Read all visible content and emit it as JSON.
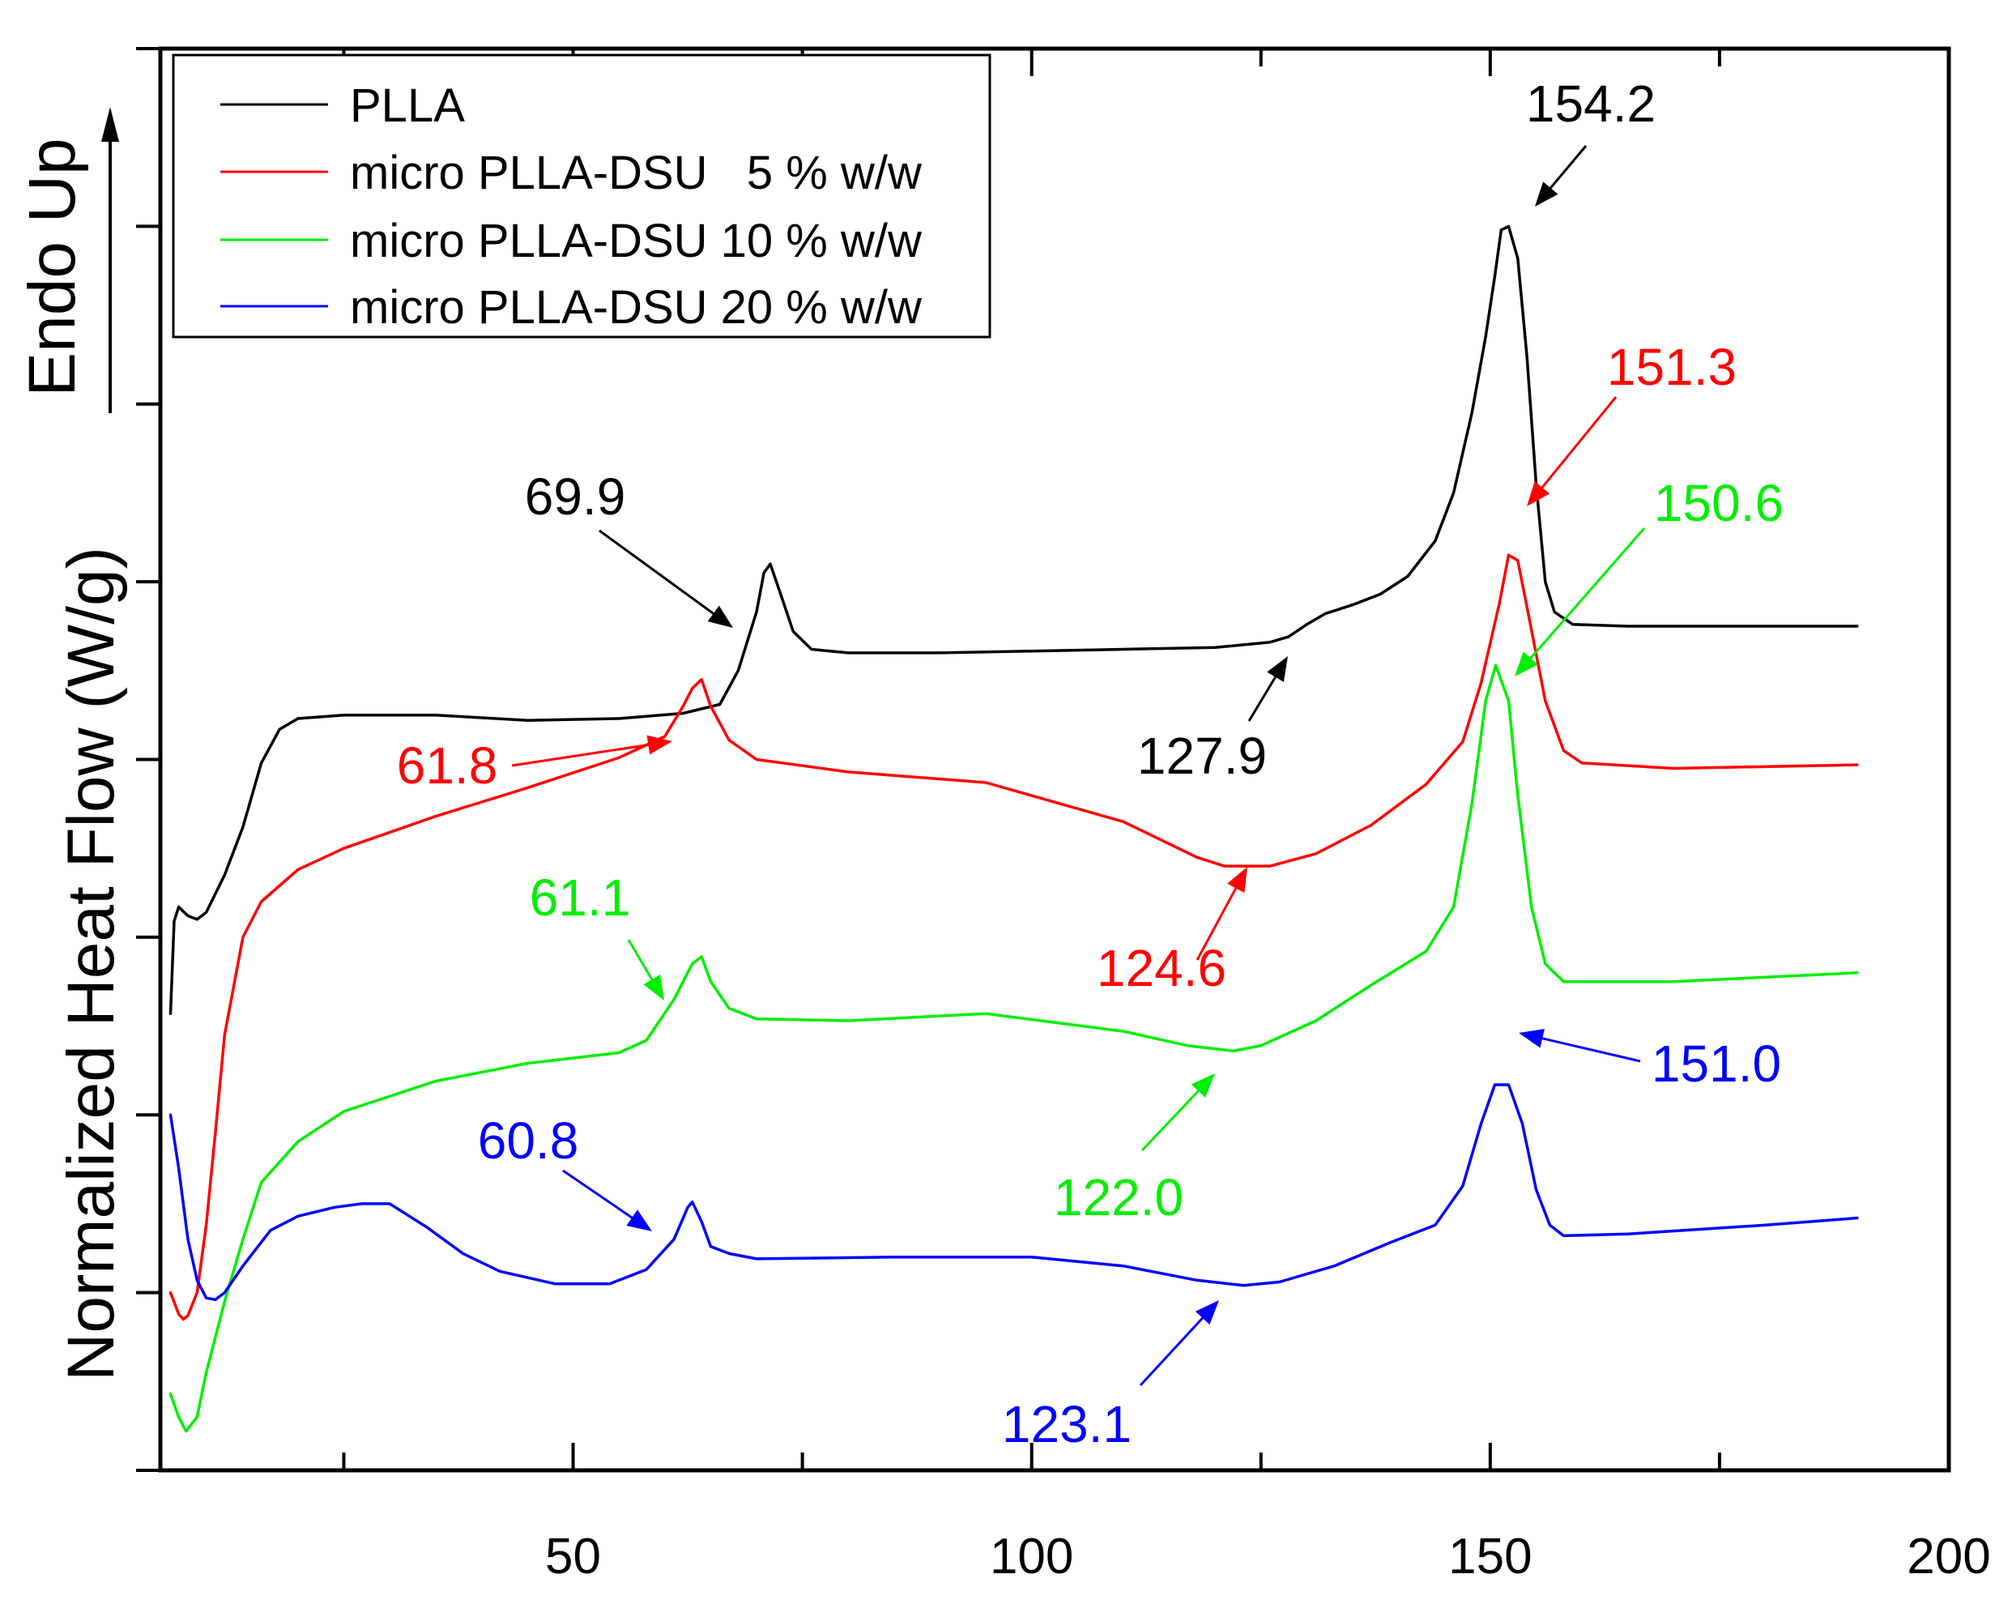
{
  "chart_data": {
    "type": "line",
    "title": "",
    "xlabel": "",
    "ylabel": "Normalized Heat Flow (W/g)",
    "y_direction_label": "Endo Up",
    "xlim": [
      5,
      200
    ],
    "ylim": [
      0,
      8
    ],
    "xticks": [
      50,
      100,
      150,
      200
    ],
    "yticks_labeled": false,
    "grid": false,
    "legend_position": "top-left",
    "colors": {
      "PLLA": "#000000",
      "micro PLLA-DSU   5 % w/w": "#ff0000",
      "micro PLLA-DSU 10 % w/w": "#00ee00",
      "micro PLLA-DSU 20 % w/w": "#0000ff"
    },
    "series": [
      {
        "name": "PLLA",
        "points": [
          [
            6.1,
            2.57
          ],
          [
            6.5,
            3.09
          ],
          [
            7,
            3.17
          ],
          [
            8,
            3.12
          ],
          [
            9,
            3.1
          ],
          [
            10,
            3.14
          ],
          [
            12,
            3.35
          ],
          [
            14,
            3.62
          ],
          [
            16,
            3.98
          ],
          [
            18,
            4.17
          ],
          [
            20,
            4.23
          ],
          [
            25,
            4.25
          ],
          [
            35,
            4.25
          ],
          [
            45,
            4.22
          ],
          [
            55,
            4.23
          ],
          [
            62,
            4.26
          ],
          [
            66,
            4.31
          ],
          [
            68,
            4.5
          ],
          [
            70,
            4.83
          ],
          [
            70.8,
            5.05
          ],
          [
            71.5,
            5.1
          ],
          [
            72.5,
            4.95
          ],
          [
            74,
            4.72
          ],
          [
            76,
            4.62
          ],
          [
            80,
            4.6
          ],
          [
            90,
            4.6
          ],
          [
            100,
            4.61
          ],
          [
            110,
            4.62
          ],
          [
            120,
            4.63
          ],
          [
            126,
            4.66
          ],
          [
            128,
            4.69
          ],
          [
            130,
            4.76
          ],
          [
            132,
            4.82
          ],
          [
            135,
            4.87
          ],
          [
            138,
            4.93
          ],
          [
            141,
            5.03
          ],
          [
            144,
            5.23
          ],
          [
            146,
            5.5
          ],
          [
            148,
            5.95
          ],
          [
            149.5,
            6.38
          ],
          [
            150.5,
            6.72
          ],
          [
            151.2,
            6.98
          ],
          [
            152,
            7.0
          ],
          [
            153,
            6.82
          ],
          [
            154,
            6.27
          ],
          [
            155,
            5.55
          ],
          [
            156,
            5.0
          ],
          [
            157,
            4.83
          ],
          [
            159,
            4.76
          ],
          [
            165,
            4.75
          ],
          [
            180,
            4.75
          ],
          [
            190,
            4.75
          ]
        ]
      },
      {
        "name": "micro PLLA-DSU   5 % w/w",
        "points": [
          [
            6.1,
            1.0
          ],
          [
            7,
            0.88
          ],
          [
            7.5,
            0.85
          ],
          [
            8,
            0.87
          ],
          [
            9,
            1.0
          ],
          [
            10,
            1.38
          ],
          [
            11,
            1.9
          ],
          [
            12,
            2.45
          ],
          [
            14,
            3.0
          ],
          [
            16,
            3.2
          ],
          [
            20,
            3.38
          ],
          [
            25,
            3.5
          ],
          [
            35,
            3.68
          ],
          [
            45,
            3.84
          ],
          [
            55,
            4.01
          ],
          [
            60,
            4.13
          ],
          [
            62,
            4.3
          ],
          [
            63,
            4.4
          ],
          [
            64,
            4.45
          ],
          [
            65,
            4.3
          ],
          [
            67,
            4.11
          ],
          [
            70,
            4.0
          ],
          [
            80,
            3.93
          ],
          [
            95,
            3.87
          ],
          [
            110,
            3.65
          ],
          [
            118,
            3.45
          ],
          [
            121,
            3.4
          ],
          [
            126,
            3.4
          ],
          [
            131,
            3.47
          ],
          [
            137,
            3.63
          ],
          [
            143,
            3.86
          ],
          [
            147,
            4.1
          ],
          [
            149,
            4.43
          ],
          [
            151,
            4.88
          ],
          [
            152,
            5.15
          ],
          [
            153,
            5.12
          ],
          [
            154,
            4.86
          ],
          [
            156,
            4.33
          ],
          [
            158,
            4.05
          ],
          [
            160,
            3.98
          ],
          [
            170,
            3.95
          ],
          [
            190,
            3.97
          ]
        ]
      },
      {
        "name": "micro PLLA-DSU 10 % w/w",
        "points": [
          [
            6.1,
            0.43
          ],
          [
            7,
            0.3
          ],
          [
            7.8,
            0.22
          ],
          [
            9,
            0.3
          ],
          [
            10,
            0.55
          ],
          [
            12,
            0.95
          ],
          [
            14,
            1.3
          ],
          [
            16,
            1.62
          ],
          [
            20,
            1.85
          ],
          [
            25,
            2.02
          ],
          [
            35,
            2.19
          ],
          [
            45,
            2.29
          ],
          [
            55,
            2.35
          ],
          [
            58,
            2.42
          ],
          [
            61,
            2.65
          ],
          [
            63,
            2.85
          ],
          [
            64,
            2.89
          ],
          [
            65,
            2.75
          ],
          [
            67,
            2.6
          ],
          [
            70,
            2.54
          ],
          [
            80,
            2.53
          ],
          [
            95,
            2.57
          ],
          [
            110,
            2.47
          ],
          [
            117,
            2.39
          ],
          [
            122,
            2.36
          ],
          [
            125,
            2.39
          ],
          [
            131,
            2.53
          ],
          [
            137,
            2.73
          ],
          [
            143,
            2.92
          ],
          [
            146,
            3.17
          ],
          [
            148,
            3.75
          ],
          [
            149.5,
            4.33
          ],
          [
            150.6,
            4.53
          ],
          [
            152,
            4.33
          ],
          [
            153,
            3.8
          ],
          [
            154.5,
            3.17
          ],
          [
            156,
            2.85
          ],
          [
            158,
            2.75
          ],
          [
            170,
            2.75
          ],
          [
            190,
            2.8
          ]
        ]
      },
      {
        "name": "micro PLLA-DSU 20 % w/w",
        "points": [
          [
            6.1,
            2.0
          ],
          [
            7,
            1.7
          ],
          [
            8,
            1.3
          ],
          [
            9,
            1.07
          ],
          [
            10,
            0.97
          ],
          [
            11,
            0.96
          ],
          [
            12,
            1.0
          ],
          [
            14,
            1.15
          ],
          [
            17,
            1.35
          ],
          [
            20,
            1.43
          ],
          [
            24,
            1.48
          ],
          [
            27,
            1.5
          ],
          [
            30,
            1.5
          ],
          [
            34,
            1.37
          ],
          [
            38,
            1.22
          ],
          [
            42,
            1.12
          ],
          [
            48,
            1.05
          ],
          [
            54,
            1.05
          ],
          [
            58,
            1.13
          ],
          [
            61,
            1.3
          ],
          [
            62.5,
            1.48
          ],
          [
            63,
            1.51
          ],
          [
            64,
            1.4
          ],
          [
            65,
            1.26
          ],
          [
            67,
            1.22
          ],
          [
            70,
            1.19
          ],
          [
            85,
            1.2
          ],
          [
            100,
            1.2
          ],
          [
            110,
            1.15
          ],
          [
            118,
            1.07
          ],
          [
            123.1,
            1.04
          ],
          [
            127,
            1.06
          ],
          [
            133,
            1.15
          ],
          [
            139,
            1.28
          ],
          [
            144,
            1.38
          ],
          [
            147,
            1.6
          ],
          [
            149,
            1.95
          ],
          [
            150.5,
            2.17
          ],
          [
            152,
            2.17
          ],
          [
            153.5,
            1.95
          ],
          [
            155,
            1.58
          ],
          [
            156.5,
            1.38
          ],
          [
            158,
            1.32
          ],
          [
            165,
            1.33
          ],
          [
            180,
            1.38
          ],
          [
            190,
            1.42
          ]
        ]
      }
    ],
    "annotations": [
      {
        "text": "154.2",
        "color": "#000000",
        "series": "PLLA",
        "x": 154.2
      },
      {
        "text": "69.9",
        "color": "#000000",
        "series": "PLLA",
        "x": 69.9
      },
      {
        "text": "127.9",
        "color": "#000000",
        "series": "PLLA",
        "x": 127.9
      },
      {
        "text": "151.3",
        "color": "#ff0000",
        "series": "micro PLLA-DSU   5 % w/w",
        "x": 151.3
      },
      {
        "text": "61.8",
        "color": "#ff0000",
        "series": "micro PLLA-DSU   5 % w/w",
        "x": 61.8
      },
      {
        "text": "124.6",
        "color": "#ff0000",
        "series": "micro PLLA-DSU   5 % w/w",
        "x": 124.6
      },
      {
        "text": "150.6",
        "color": "#00ee00",
        "series": "micro PLLA-DSU 10 % w/w",
        "x": 150.6
      },
      {
        "text": "61.1",
        "color": "#00ee00",
        "series": "micro PLLA-DSU 10 % w/w",
        "x": 61.1
      },
      {
        "text": "122.0",
        "color": "#00ee00",
        "series": "micro PLLA-DSU 10 % w/w",
        "x": 122.0
      },
      {
        "text": "151.0",
        "color": "#0000ff",
        "series": "micro PLLA-DSU 20 % w/w",
        "x": 151.0
      },
      {
        "text": "60.8",
        "color": "#0000ff",
        "series": "micro PLLA-DSU 20 % w/w",
        "x": 60.8
      },
      {
        "text": "123.1",
        "color": "#0000ff",
        "series": "micro PLLA-DSU 20 % w/w",
        "x": 123.1
      }
    ]
  }
}
